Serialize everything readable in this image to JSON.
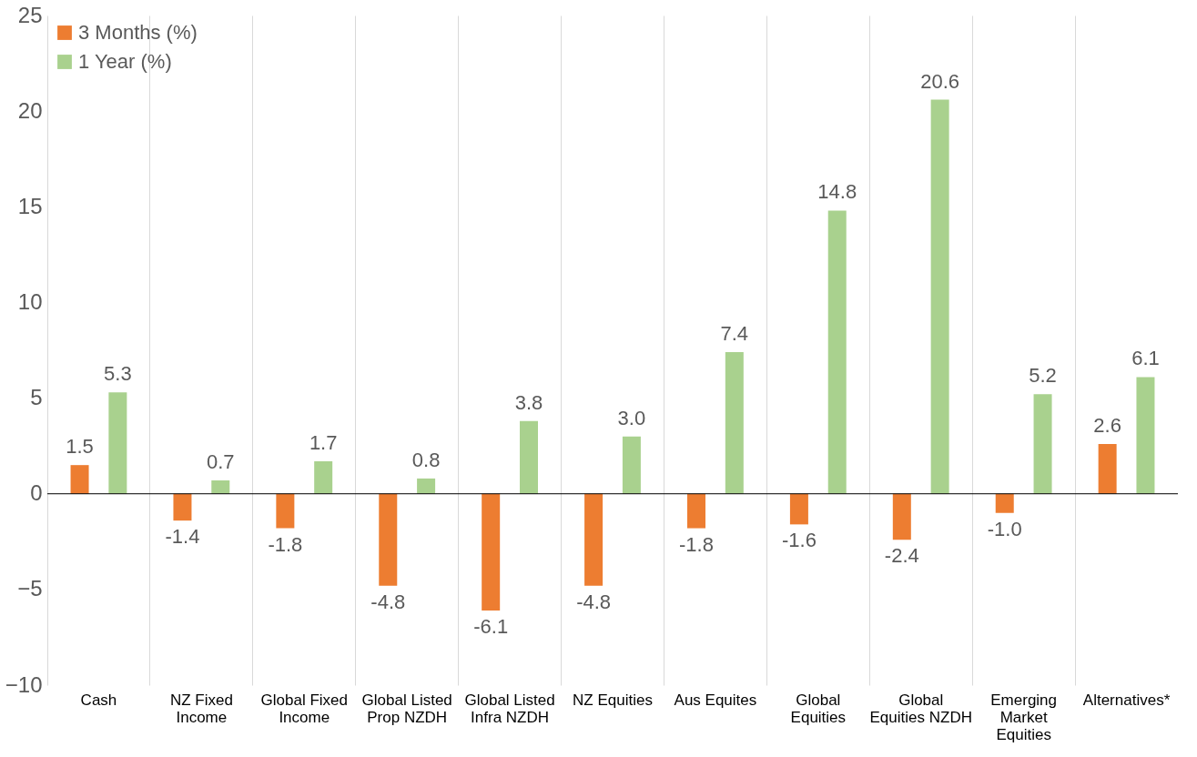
{
  "chart_data": {
    "type": "bar",
    "categories": [
      "Cash",
      "NZ Fixed Income",
      "Global Fixed Income",
      "Global Listed Prop NZDH",
      "Global Listed Infra NZDH",
      "NZ Equities",
      "Aus Equites",
      "Global Equities",
      "Global Equities NZDH",
      "Emerging Market Equities",
      "Alternatives*"
    ],
    "series": [
      {
        "name": "3 Months    (%)",
        "color": "#ed7d31",
        "values": [
          1.5,
          -1.4,
          -1.8,
          -4.8,
          -6.1,
          -4.8,
          -1.8,
          -1.6,
          -2.4,
          -1.0,
          2.6
        ],
        "value_labels": [
          "1.5",
          "-1.4",
          "-1.8",
          "-4.8",
          "-6.1",
          "-4.8",
          "-1.8",
          "-1.6",
          "-2.4",
          "-1.0",
          "2.6"
        ]
      },
      {
        "name": "1 Year   (%)",
        "color": "#a9d18e",
        "values": [
          5.3,
          0.7,
          1.7,
          0.8,
          3.8,
          3.0,
          7.4,
          14.8,
          20.6,
          5.2,
          6.1
        ],
        "value_labels": [
          "5.3",
          "0.7",
          "1.7",
          "0.8",
          "3.8",
          "3.0",
          "7.4",
          "14.8",
          "20.6",
          "5.2",
          "6.1"
        ]
      }
    ],
    "ylim": [
      -10,
      25
    ],
    "yticks": [
      -10,
      -5,
      0,
      5,
      10,
      15,
      20,
      25
    ],
    "grid": "x",
    "legend": "top left"
  }
}
